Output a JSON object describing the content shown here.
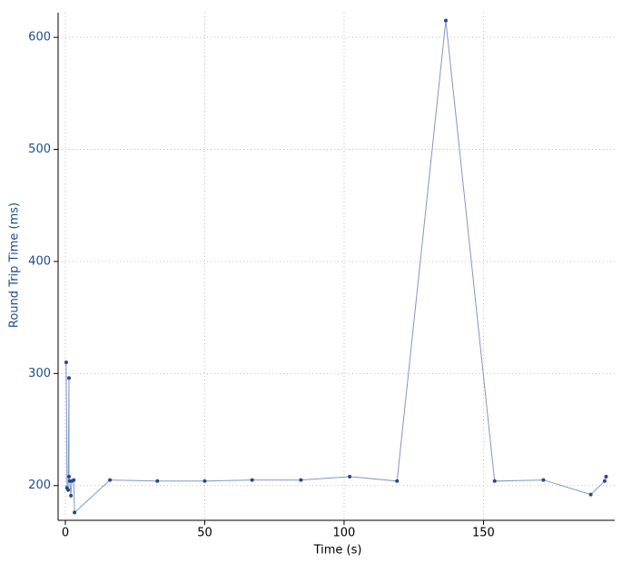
{
  "chart_data": {
    "type": "line",
    "x": [
      0.3,
      0.6,
      1,
      1.3,
      1.3,
      1.6,
      2,
      2.3,
      3,
      3.3,
      16,
      33,
      50,
      67,
      84.5,
      102,
      119,
      136.5,
      154,
      171.5,
      188.5,
      193.5,
      194
    ],
    "series": [
      {
        "color": "#7f97c6",
        "marker_color": "#27498a",
        "values": [
          310,
          198,
          196,
          296,
          208,
          204,
          191,
          204,
          205,
          176,
          205,
          204,
          204,
          205,
          205,
          208,
          204,
          615,
          204,
          205,
          192,
          204,
          208
        ]
      }
    ],
    "x_label": "Time (s)",
    "y_label": "Round Trip Time (ms)",
    "xlim": [
      -2.6,
      197.1
    ],
    "xticks": [
      0,
      50,
      100,
      150
    ],
    "ylim": [
      169,
      622
    ],
    "yticks": [
      200,
      300,
      400,
      500,
      600
    ],
    "grid": true
  }
}
